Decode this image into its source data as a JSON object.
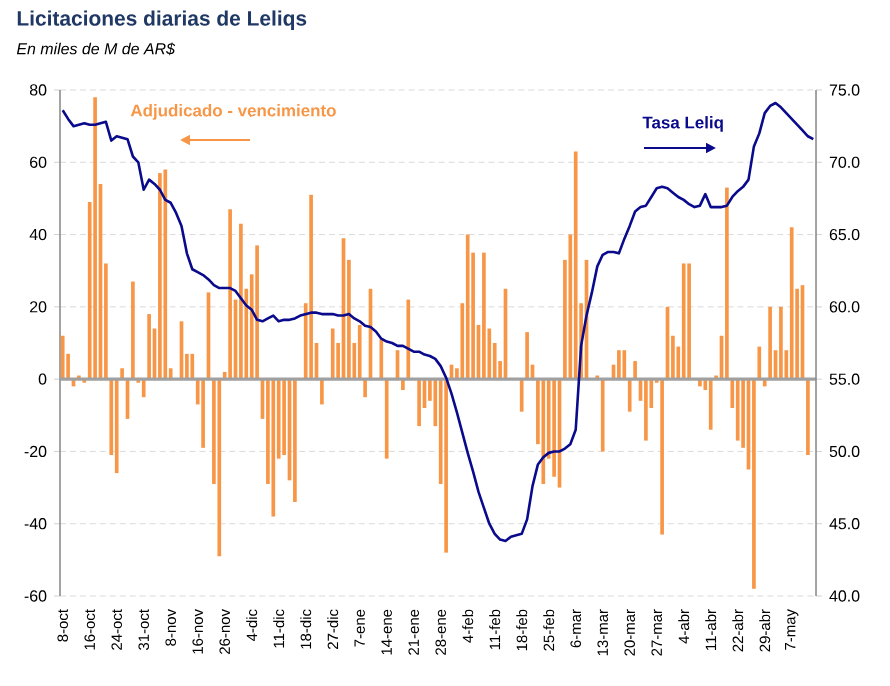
{
  "chart_data": {
    "type": "bar",
    "title": "Licitaciones diarias de Leliqs",
    "subtitle": "En miles de M de AR$",
    "categories": [
      "8-oct",
      null,
      null,
      null,
      null,
      "16-oct",
      null,
      null,
      null,
      null,
      "24-oct",
      null,
      null,
      null,
      null,
      "31-oct",
      null,
      null,
      null,
      null,
      "8-nov",
      null,
      null,
      null,
      null,
      "16-nov",
      null,
      null,
      null,
      null,
      "26-nov",
      null,
      null,
      null,
      null,
      "4-dic",
      null,
      null,
      null,
      null,
      "11-dic",
      null,
      null,
      null,
      null,
      "18-dic",
      null,
      null,
      null,
      null,
      "27-dic",
      null,
      null,
      null,
      null,
      "7-ene",
      null,
      null,
      null,
      null,
      "14-ene",
      null,
      null,
      null,
      null,
      "21-ene",
      null,
      null,
      null,
      null,
      "28-ene",
      null,
      null,
      null,
      null,
      "4-feb",
      null,
      null,
      null,
      null,
      "11-feb",
      null,
      null,
      null,
      null,
      "18-feb",
      null,
      null,
      null,
      null,
      "25-feb",
      null,
      null,
      null,
      null,
      "6-mar",
      null,
      null,
      null,
      null,
      "13-mar",
      null,
      null,
      null,
      null,
      "20-mar",
      null,
      null,
      null,
      null,
      "27-mar",
      null,
      null,
      null,
      null,
      "4-abr",
      null,
      null,
      null,
      null,
      "11-abr",
      null,
      null,
      null,
      null,
      "22-abr",
      null,
      null,
      null,
      null,
      "29-abr",
      null,
      null,
      null,
      null,
      "7-may",
      null,
      null,
      null,
      null
    ],
    "series": [
      {
        "name": "Adjudicado - vencimiento",
        "color": "#f79646",
        "values": [
          12,
          7,
          -2,
          1,
          -1,
          49,
          78,
          54,
          32,
          -21,
          -26,
          3,
          -11,
          27,
          -1,
          -5,
          18,
          14,
          57,
          58,
          3,
          null,
          16,
          7,
          7,
          -7,
          -19,
          24,
          -29,
          -49,
          2,
          47,
          22,
          43,
          25,
          29,
          37,
          -11,
          -29,
          -38,
          -22,
          -21,
          -28,
          -34,
          0,
          21,
          51,
          10,
          -7,
          0,
          14,
          10,
          39,
          33,
          10,
          15,
          -5,
          25,
          0,
          11,
          -22,
          0,
          8,
          -3,
          22,
          0,
          -13,
          -8,
          -6,
          -13,
          -29,
          -48,
          4,
          3,
          21,
          40,
          35,
          15,
          35,
          14,
          10,
          5,
          25,
          0,
          0,
          -9,
          13,
          4,
          -18,
          -29,
          -22,
          -27,
          -30,
          33,
          40,
          63,
          21,
          33,
          0,
          1,
          -20,
          0,
          4,
          8,
          8,
          -9,
          5,
          -6,
          -17,
          -8,
          -1,
          -43,
          20,
          12,
          9,
          32,
          32,
          null,
          -2,
          -3,
          -14,
          1,
          12,
          53,
          -8,
          -17,
          -19,
          -25,
          -58,
          9,
          -2,
          20,
          8,
          20,
          8,
          42,
          25,
          26,
          -21,
          0
        ]
      },
      {
        "name": "Tasa Leliq",
        "type": "line",
        "axis": "y2",
        "color": "#0a0a8c",
        "values": [
          73.6,
          73.0,
          72.5,
          72.6,
          72.7,
          72.6,
          72.6,
          72.7,
          72.8,
          71.5,
          71.8,
          71.7,
          71.6,
          70.4,
          70.0,
          68.1,
          68.8,
          68.5,
          68.1,
          67.4,
          67.2,
          66.5,
          65.6,
          63.7,
          62.6,
          62.4,
          62.2,
          61.9,
          61.5,
          61.3,
          61.3,
          61.3,
          61.1,
          60.6,
          60.1,
          59.8,
          59.1,
          59.0,
          59.2,
          59.4,
          59.0,
          59.1,
          59.1,
          59.2,
          59.4,
          59.5,
          59.6,
          59.6,
          59.5,
          59.5,
          59.5,
          59.4,
          59.4,
          59.5,
          59.2,
          59.0,
          58.7,
          58.6,
          58.3,
          57.8,
          57.6,
          57.5,
          57.3,
          57.3,
          57.1,
          56.9,
          56.9,
          56.7,
          56.6,
          56.4,
          55.9,
          55.1,
          54.0,
          52.7,
          51.3,
          49.9,
          48.6,
          47.2,
          46.1,
          45.0,
          44.3,
          43.9,
          43.8,
          44.1,
          44.2,
          44.3,
          45.3,
          47.6,
          49.1,
          49.6,
          49.9,
          50.0,
          50.0,
          50.2,
          50.5,
          51.5,
          57.3,
          59.4,
          61.0,
          62.8,
          63.6,
          63.8,
          63.8,
          63.7,
          64.7,
          65.6,
          66.6,
          66.9,
          67.0,
          67.6,
          68.2,
          68.3,
          68.2,
          67.9,
          67.6,
          67.4,
          67.1,
          66.9,
          67.0,
          67.8,
          66.9,
          66.9,
          66.9,
          67.0,
          67.6,
          68.0,
          68.3,
          68.8,
          71.1,
          72.0,
          73.4,
          73.9,
          74.1,
          73.8,
          73.4,
          73.0,
          72.6,
          72.2,
          71.8,
          71.6
        ]
      }
    ],
    "ylim": [
      -60,
      80
    ],
    "yticks": [
      -60,
      -40,
      -20,
      0,
      20,
      40,
      60,
      80
    ],
    "y2lim": [
      40,
      75
    ],
    "y2ticks": [
      {
        "value": 40,
        "label": "40.0"
      },
      {
        "value": 45,
        "label": "45.0"
      },
      {
        "value": 50,
        "label": "50.0"
      },
      {
        "value": 55,
        "label": "55.0"
      },
      {
        "value": 60,
        "label": "60.0"
      },
      {
        "value": 65,
        "label": "65.0"
      },
      {
        "value": 70,
        "label": "70.0"
      },
      {
        "value": 75,
        "label": "75.0"
      }
    ],
    "ref_lines": [
      {
        "axis": "y",
        "value": 0,
        "color": "#a0a0a0"
      }
    ],
    "grid": "y",
    "legend": false,
    "marker": "none",
    "line_style": "solid"
  }
}
